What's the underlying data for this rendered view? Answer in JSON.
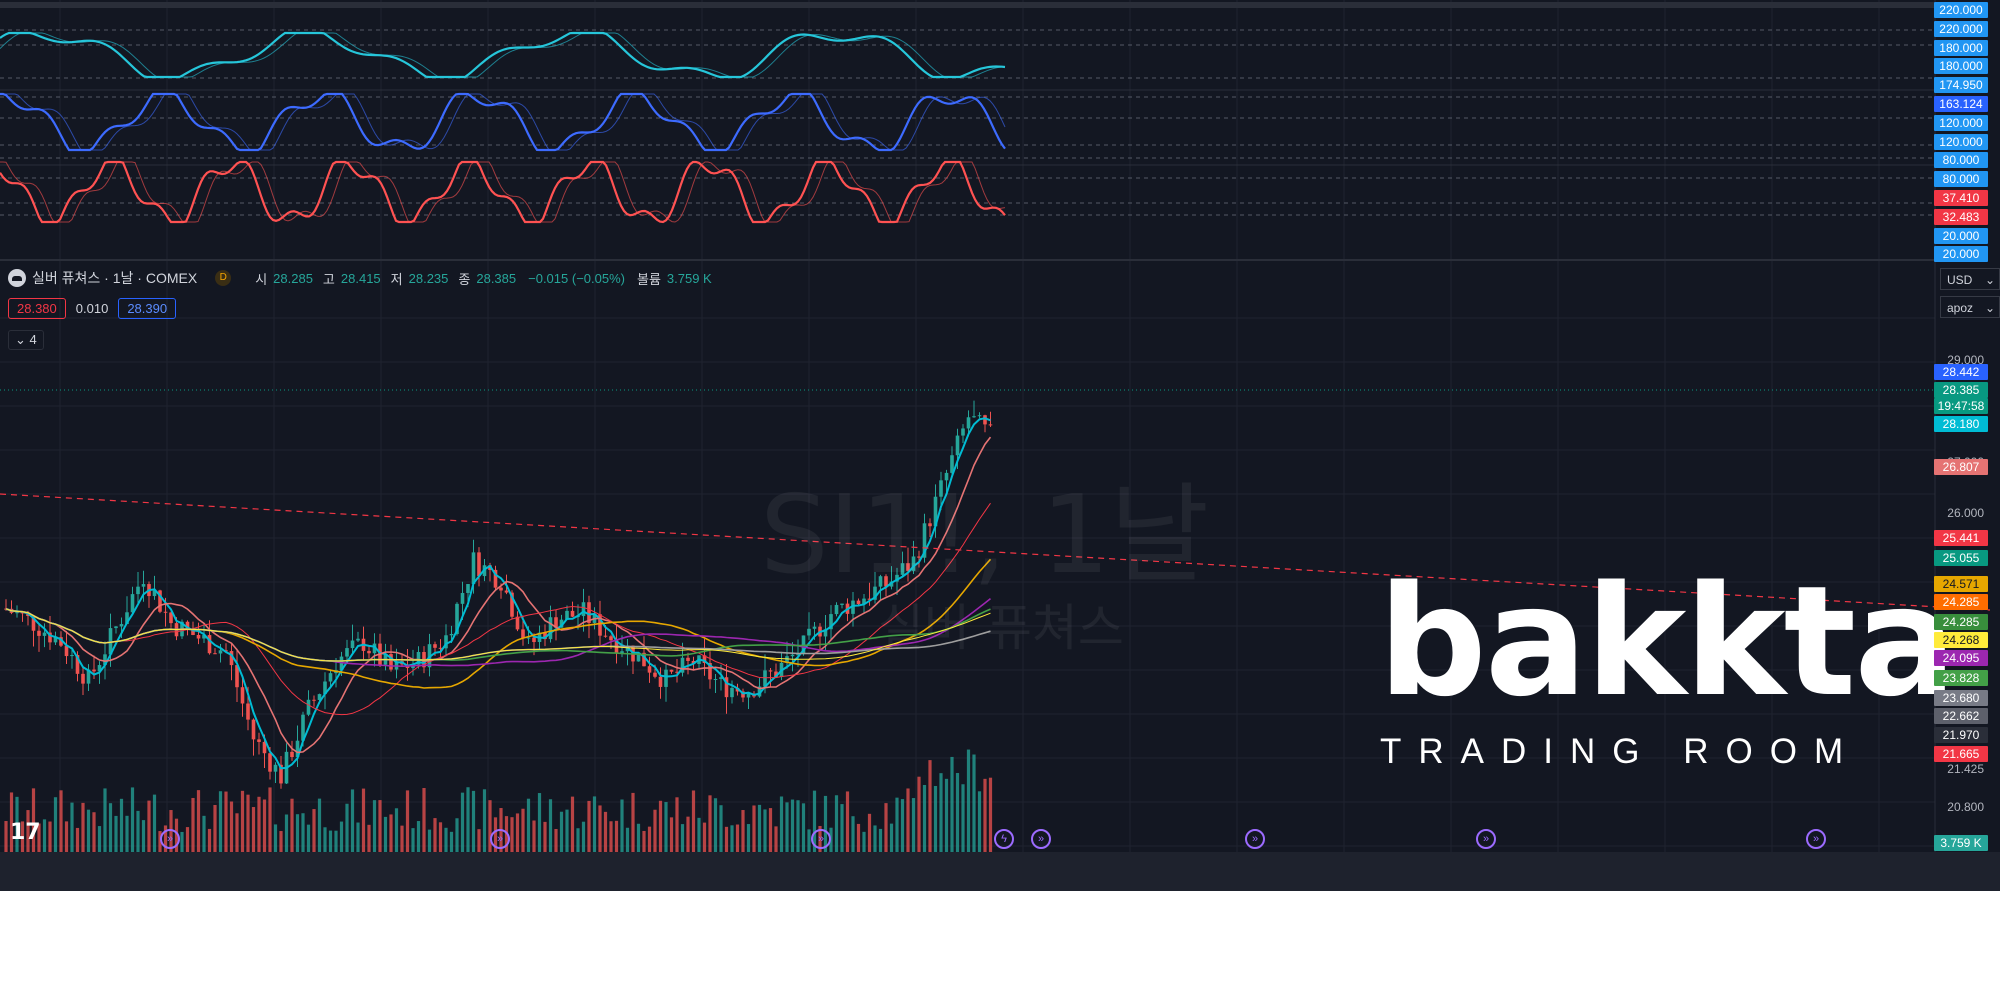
{
  "osc_axis": [
    "220.000",
    "220.000",
    "180.000",
    "180.000",
    "174.950",
    "163.124",
    "120.000",
    "120.000",
    "80.000",
    "80.000",
    "37.410",
    "32.483",
    "20.000",
    "20.000"
  ],
  "osc_axis_colors": [
    "#2196f3",
    "#2196f3",
    "#2196f3",
    "#2196f3",
    "#2196f3",
    "#2962ff",
    "#2196f3",
    "#2196f3",
    "#2196f3",
    "#2196f3",
    "#f23645",
    "#f23645",
    "#2196f3",
    "#2196f3"
  ],
  "legend": {
    "symbol": "실버 퓨쳐스 · 1날 · COMEX",
    "badge": "D",
    "o_key": "시",
    "o_val": "28.285",
    "h_key": "고",
    "h_val": "28.415",
    "l_key": "저",
    "l_val": "28.235",
    "c_key": "종",
    "c_val": "28.385",
    "change": "−0.015 (−0.05%)",
    "vol_key": "볼륨",
    "vol_val": "3.759 K"
  },
  "spread": {
    "bid": "28.380",
    "diff": "0.010",
    "ask": "28.390"
  },
  "collapse_label": "4",
  "currency": "USD",
  "user": "apoz",
  "price_axis": [
    "29.000",
    "27.000",
    "26.000",
    "21.425",
    "20.800"
  ],
  "price_tags": [
    {
      "label": "28.442",
      "color": "#2962ff"
    },
    {
      "label": "28.385",
      "color": "#089981"
    },
    {
      "label": "19:47:58",
      "color": "#089981"
    },
    {
      "label": "28.180",
      "color": "#00bcd4"
    },
    {
      "label": "26.807",
      "color": "#e57373"
    },
    {
      "label": "25.441",
      "color": "#f23645"
    },
    {
      "label": "25.055",
      "color": "#089981"
    },
    {
      "label": "24.571",
      "color": "#e6a700"
    },
    {
      "label": "24.285",
      "color": "#ff6d00"
    },
    {
      "label": "24.285",
      "color": "#388e3c"
    },
    {
      "label": "24.268",
      "color": "#ffeb3b"
    },
    {
      "label": "24.095",
      "color": "#9c27b0"
    },
    {
      "label": "23.828",
      "color": "#43a047"
    },
    {
      "label": "23.680",
      "color": "#787b86"
    },
    {
      "label": "22.662",
      "color": "#5d606b"
    },
    {
      "label": "21.970",
      "color": "#2a2e39"
    },
    {
      "label": "21.665",
      "color": "#f23645"
    },
    {
      "label": "3.759 K",
      "color": "#26a69a"
    }
  ],
  "watermark": {
    "symbol": "SI1!, 1날",
    "name": "실버 퓨쳐스"
  },
  "brand": {
    "word": "bakkta",
    "sub": "TRADING ROOM"
  },
  "tv_logo": "17"
}
